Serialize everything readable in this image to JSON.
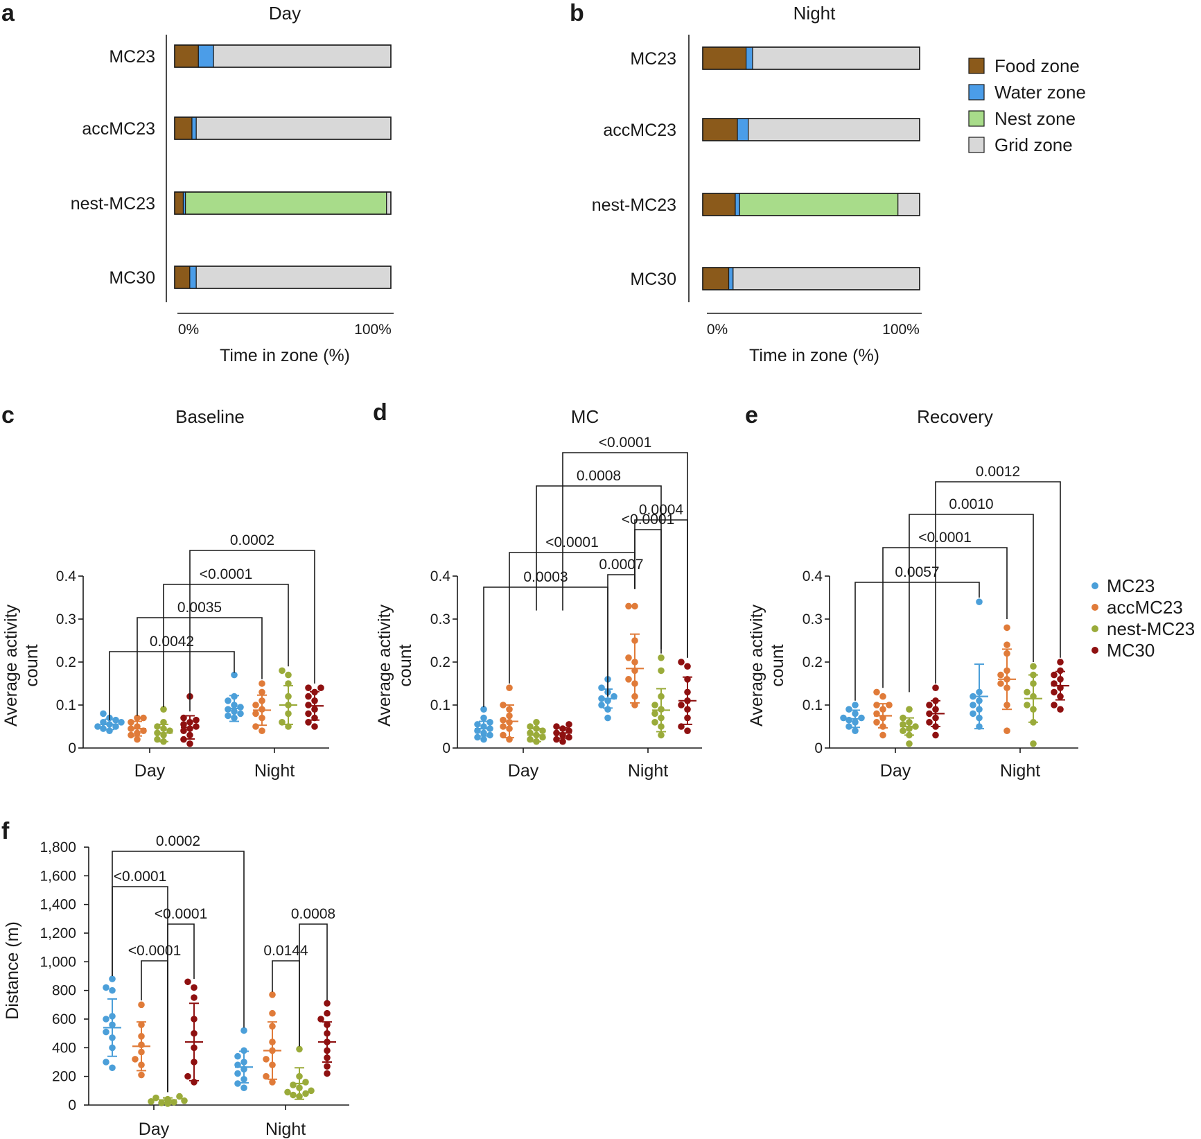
{
  "colors": {
    "food": "#8b5a1b",
    "water": "#4b9de8",
    "nest": "#a8dc8a",
    "grid": "#d8d8d8",
    "MC23": "#4b9fd9",
    "accMC23": "#e07b39",
    "nest-MC23": "#9aab3a",
    "MC30": "#8e1010"
  },
  "panels": {
    "a": {
      "letter": "a"
    },
    "b": {
      "letter": "b"
    },
    "c": {
      "letter": "c"
    },
    "d": {
      "letter": "d"
    },
    "e": {
      "letter": "e"
    },
    "f": {
      "letter": "f"
    }
  },
  "legend_zones": {
    "items": [
      {
        "label": "Food zone",
        "color": "#8b5a1b"
      },
      {
        "label": "Water zone",
        "color": "#4b9de8"
      },
      {
        "label": "Nest zone",
        "color": "#a8dc8a"
      },
      {
        "label": "Grid zone",
        "color": "#d8d8d8"
      }
    ]
  },
  "legend_groups": {
    "items": [
      {
        "label": "MC23",
        "color": "#4b9fd9"
      },
      {
        "label": "accMC23",
        "color": "#e07b39"
      },
      {
        "label": "nest-MC23",
        "color": "#9aab3a"
      },
      {
        "label": "MC30",
        "color": "#8e1010"
      }
    ]
  },
  "chart_data": [
    {
      "id": "a",
      "type": "bar",
      "stacked": true,
      "orientation": "horizontal",
      "title": "Day",
      "xlabel": "Time in zone (%)",
      "xticks": [
        "0%",
        "100%"
      ],
      "categories": [
        "MC23",
        "accMC23",
        "nest-MC23",
        "MC30"
      ],
      "series": [
        {
          "name": "Food zone",
          "values": [
            11,
            8,
            4,
            7
          ]
        },
        {
          "name": "Water zone",
          "values": [
            7,
            2,
            1,
            3
          ]
        },
        {
          "name": "Nest zone",
          "values": [
            0,
            0,
            93,
            0
          ]
        },
        {
          "name": "Grid zone",
          "values": [
            82,
            90,
            2,
            90
          ]
        }
      ]
    },
    {
      "id": "b",
      "type": "bar",
      "stacked": true,
      "orientation": "horizontal",
      "title": "Night",
      "xlabel": "Time in zone (%)",
      "xticks": [
        "0%",
        "100%"
      ],
      "categories": [
        "MC23",
        "accMC23",
        "nest-MC23",
        "MC30"
      ],
      "series": [
        {
          "name": "Food zone",
          "values": [
            20,
            16,
            15,
            12
          ]
        },
        {
          "name": "Water zone",
          "values": [
            3,
            5,
            2,
            2
          ]
        },
        {
          "name": "Nest zone",
          "values": [
            0,
            0,
            73,
            0
          ]
        },
        {
          "name": "Grid zone",
          "values": [
            77,
            79,
            10,
            86
          ]
        }
      ]
    },
    {
      "id": "c",
      "type": "scatter",
      "title": "Baseline",
      "ylabel": "Average activity count",
      "ylim": [
        0,
        0.4
      ],
      "yticks": [
        "0",
        "0.1",
        "0.2",
        "0.3",
        "0.4"
      ],
      "categories": [
        "Day",
        "Night"
      ],
      "series": [
        {
          "name": "MC23",
          "points": [
            [
              0.04,
              0.045,
              0.05,
              0.05,
              0.055,
              0.06,
              0.06,
              0.065,
              0.07,
              0.08
            ],
            [
              0.07,
              0.075,
              0.08,
              0.085,
              0.09,
              0.095,
              0.1,
              0.11,
              0.12,
              0.17
            ]
          ],
          "mean": [
            0.055,
            0.092
          ],
          "sd": [
            0.012,
            0.03
          ]
        },
        {
          "name": "accMC23",
          "points": [
            [
              0.02,
              0.03,
              0.035,
              0.04,
              0.045,
              0.05,
              0.06,
              0.07,
              0.07
            ],
            [
              0.04,
              0.05,
              0.07,
              0.08,
              0.09,
              0.1,
              0.11,
              0.13,
              0.15
            ]
          ],
          "mean": [
            0.045,
            0.088
          ],
          "sd": [
            0.017,
            0.035
          ]
        },
        {
          "name": "nest-MC23",
          "points": [
            [
              0.015,
              0.02,
              0.03,
              0.035,
              0.04,
              0.045,
              0.05,
              0.06,
              0.09
            ],
            [
              0.05,
              0.06,
              0.08,
              0.1,
              0.12,
              0.15,
              0.17,
              0.18
            ]
          ],
          "mean": [
            0.035,
            0.1
          ],
          "sd": [
            0.02,
            0.045
          ]
        },
        {
          "name": "MC30",
          "points": [
            [
              0.01,
              0.02,
              0.03,
              0.04,
              0.045,
              0.05,
              0.055,
              0.06,
              0.065,
              0.07,
              0.12
            ],
            [
              0.05,
              0.06,
              0.07,
              0.08,
              0.09,
              0.1,
              0.11,
              0.12,
              0.13,
              0.14,
              0.14
            ]
          ],
          "mean": [
            0.048,
            0.098
          ],
          "sd": [
            0.027,
            0.033
          ]
        }
      ],
      "brackets": [
        {
          "from": [
            "MC23",
            "Day"
          ],
          "to": [
            "MC23",
            "Night"
          ],
          "label": "0.0042"
        },
        {
          "from": [
            "accMC23",
            "Day"
          ],
          "to": [
            "accMC23",
            "Night"
          ],
          "label": "0.0035"
        },
        {
          "from": [
            "nest-MC23",
            "Day"
          ],
          "to": [
            "nest-MC23",
            "Night"
          ],
          "label": "<0.0001"
        },
        {
          "from": [
            "MC30",
            "Day"
          ],
          "to": [
            "MC30",
            "Night"
          ],
          "label": "0.0002"
        }
      ]
    },
    {
      "id": "d",
      "type": "scatter",
      "title": "MC",
      "ylabel": "Average activity count",
      "ylim": [
        0,
        0.4
      ],
      "yticks": [
        "0",
        "0.1",
        "0.2",
        "0.3",
        "0.4"
      ],
      "categories": [
        "Day",
        "Night"
      ],
      "series": [
        {
          "name": "MC23",
          "points": [
            [
              0.02,
              0.025,
              0.03,
              0.035,
              0.04,
              0.045,
              0.05,
              0.055,
              0.06,
              0.07,
              0.09
            ],
            [
              0.07,
              0.09,
              0.1,
              0.11,
              0.115,
              0.12,
              0.13,
              0.14,
              0.16
            ]
          ],
          "mean": [
            0.045,
            0.115
          ],
          "sd": [
            0.017,
            0.022
          ]
        },
        {
          "name": "accMC23",
          "points": [
            [
              0.02,
              0.03,
              0.045,
              0.05,
              0.06,
              0.065,
              0.075,
              0.09,
              0.1,
              0.14
            ],
            [
              0.1,
              0.12,
              0.15,
              0.16,
              0.18,
              0.2,
              0.21,
              0.25,
              0.33,
              0.33
            ]
          ],
          "mean": [
            0.062,
            0.185
          ],
          "sd": [
            0.038,
            0.08
          ]
        },
        {
          "name": "nest-MC23",
          "points": [
            [
              0.015,
              0.02,
              0.025,
              0.03,
              0.035,
              0.04,
              0.045,
              0.05,
              0.06
            ],
            [
              0.03,
              0.05,
              0.06,
              0.07,
              0.08,
              0.09,
              0.1,
              0.12,
              0.18,
              0.21
            ]
          ],
          "mean": [
            0.03,
            0.088
          ],
          "sd": [
            0.015,
            0.05
          ]
        },
        {
          "name": "MC30",
          "points": [
            [
              0.015,
              0.02,
              0.025,
              0.03,
              0.035,
              0.04,
              0.045,
              0.05,
              0.055
            ],
            [
              0.04,
              0.05,
              0.07,
              0.09,
              0.1,
              0.11,
              0.13,
              0.16,
              0.19,
              0.2
            ]
          ],
          "mean": [
            0.035,
            0.11
          ],
          "sd": [
            0.012,
            0.055
          ]
        }
      ],
      "brackets": [
        {
          "from": [
            "MC23",
            "Day"
          ],
          "to": [
            "MC23",
            "Night"
          ],
          "label": "0.0003"
        },
        {
          "from": [
            "accMC23",
            "Day"
          ],
          "to": [
            "accMC23",
            "Night"
          ],
          "label": "<0.0001"
        },
        {
          "from": [
            "MC23",
            "Night"
          ],
          "to": [
            "accMC23",
            "Night"
          ],
          "label": "0.0007"
        },
        {
          "from": [
            "accMC23",
            "Night"
          ],
          "to": [
            "nest-MC23",
            "Night"
          ],
          "label": "<0.0001"
        },
        {
          "from": [
            "accMC23",
            "Night"
          ],
          "to": [
            "MC30",
            "Night"
          ],
          "label": "0.0004"
        },
        {
          "from": [
            "nest-MC23",
            "Day"
          ],
          "to": [
            "nest-MC23",
            "Night"
          ],
          "label": "0.0008"
        },
        {
          "from": [
            "MC30",
            "Day"
          ],
          "to": [
            "MC30",
            "Night"
          ],
          "label": "<0.0001"
        }
      ]
    },
    {
      "id": "e",
      "type": "scatter",
      "title": "Recovery",
      "ylabel": "Average activity count",
      "ylim": [
        0,
        0.4
      ],
      "yticks": [
        "0",
        "0.1",
        "0.2",
        "0.3",
        "0.4"
      ],
      "categories": [
        "Day",
        "Night"
      ],
      "series": [
        {
          "name": "MC23",
          "points": [
            [
              0.04,
              0.05,
              0.06,
              0.065,
              0.07,
              0.07,
              0.08,
              0.09,
              0.1
            ],
            [
              0.05,
              0.07,
              0.08,
              0.09,
              0.1,
              0.11,
              0.12,
              0.13,
              0.34
            ]
          ],
          "mean": [
            0.068,
            0.12
          ],
          "sd": [
            0.02,
            0.075
          ]
        },
        {
          "name": "accMC23",
          "points": [
            [
              0.03,
              0.05,
              0.06,
              0.07,
              0.08,
              0.09,
              0.1,
              0.1,
              0.12,
              0.13
            ],
            [
              0.04,
              0.1,
              0.14,
              0.15,
              0.16,
              0.17,
              0.18,
              0.22,
              0.24,
              0.28
            ]
          ],
          "mean": [
            0.075,
            0.16
          ],
          "sd": [
            0.028,
            0.07
          ]
        },
        {
          "name": "nest-MC23",
          "points": [
            [
              0.01,
              0.03,
              0.04,
              0.045,
              0.05,
              0.055,
              0.06,
              0.07,
              0.09
            ],
            [
              0.01,
              0.06,
              0.09,
              0.1,
              0.12,
              0.13,
              0.15,
              0.17,
              0.19
            ]
          ],
          "mean": [
            0.05,
            0.115
          ],
          "sd": [
            0.02,
            0.055
          ]
        },
        {
          "name": "MC30",
          "points": [
            [
              0.03,
              0.05,
              0.06,
              0.07,
              0.08,
              0.09,
              0.1,
              0.11,
              0.14
            ],
            [
              0.09,
              0.1,
              0.12,
              0.13,
              0.14,
              0.15,
              0.16,
              0.17,
              0.18,
              0.2
            ]
          ],
          "mean": [
            0.08,
            0.145
          ],
          "sd": [
            0.03,
            0.033
          ]
        }
      ],
      "brackets": [
        {
          "from": [
            "MC23",
            "Day"
          ],
          "to": [
            "MC23",
            "Night"
          ],
          "label": "0.0057"
        },
        {
          "from": [
            "accMC23",
            "Day"
          ],
          "to": [
            "accMC23",
            "Night"
          ],
          "label": "<0.0001"
        },
        {
          "from": [
            "nest-MC23",
            "Day"
          ],
          "to": [
            "nest-MC23",
            "Night"
          ],
          "label": "0.0010"
        },
        {
          "from": [
            "MC30",
            "Day"
          ],
          "to": [
            "MC30",
            "Night"
          ],
          "label": "0.0012"
        }
      ]
    },
    {
      "id": "f",
      "type": "scatter",
      "title": "",
      "ylabel": "Distance (m)",
      "ylim": [
        0,
        1800
      ],
      "yticks": [
        "0",
        "200",
        "400",
        "600",
        "800",
        "1,000",
        "1,200",
        "1,400",
        "1,600",
        "1,800"
      ],
      "categories": [
        "Day",
        "Night"
      ],
      "series": [
        {
          "name": "MC23",
          "points": [
            [
              260,
              300,
              400,
              470,
              510,
              560,
              600,
              620,
              800,
              820,
              880
            ],
            [
              120,
              150,
              180,
              220,
              250,
              280,
              300,
              340,
              380,
              520
            ]
          ],
          "mean": [
            540,
            265
          ],
          "sd": [
            200,
            110
          ]
        },
        {
          "name": "accMC23",
          "points": [
            [
              210,
              280,
              320,
              370,
              420,
              480,
              560,
              700
            ],
            [
              160,
              200,
              280,
              320,
              380,
              440,
              550,
              640,
              770
            ]
          ],
          "mean": [
            410,
            380
          ],
          "sd": [
            170,
            200
          ]
        },
        {
          "name": "nest-MC23",
          "points": [
            [
              10,
              15,
              20,
              25,
              30,
              35,
              40,
              50,
              60
            ],
            [
              60,
              70,
              80,
              90,
              100,
              120,
              140,
              160,
              200,
              390
            ]
          ],
          "mean": [
            35,
            150
          ],
          "sd": [
            15,
            110
          ]
        },
        {
          "name": "MC30",
          "points": [
            [
              160,
              200,
              300,
              400,
              500,
              600,
              750,
              820,
              860
            ],
            [
              220,
              270,
              330,
              380,
              440,
              500,
              560,
              600,
              640,
              710
            ]
          ],
          "mean": [
            440,
            440
          ],
          "sd": [
            270,
            140
          ]
        }
      ],
      "brackets": [
        {
          "from": [
            "MC23",
            "Day"
          ],
          "to": [
            "MC23",
            "Night"
          ],
          "label": "0.0002"
        },
        {
          "from": [
            "MC23",
            "Day"
          ],
          "to": [
            "nest-MC23",
            "Day"
          ],
          "label": "<0.0001"
        },
        {
          "from": [
            "nest-MC23",
            "Day"
          ],
          "to": [
            "MC30",
            "Day"
          ],
          "label": "<0.0001"
        },
        {
          "from": [
            "accMC23",
            "Day"
          ],
          "to": [
            "nest-MC23",
            "Day"
          ],
          "label": "<0.0001"
        },
        {
          "from": [
            "nest-MC23",
            "Night"
          ],
          "to": [
            "MC30",
            "Night"
          ],
          "label": "0.0008"
        },
        {
          "from": [
            "accMC23",
            "Night"
          ],
          "to": [
            "nest-MC23",
            "Night"
          ],
          "label": "0.0144"
        }
      ]
    }
  ]
}
